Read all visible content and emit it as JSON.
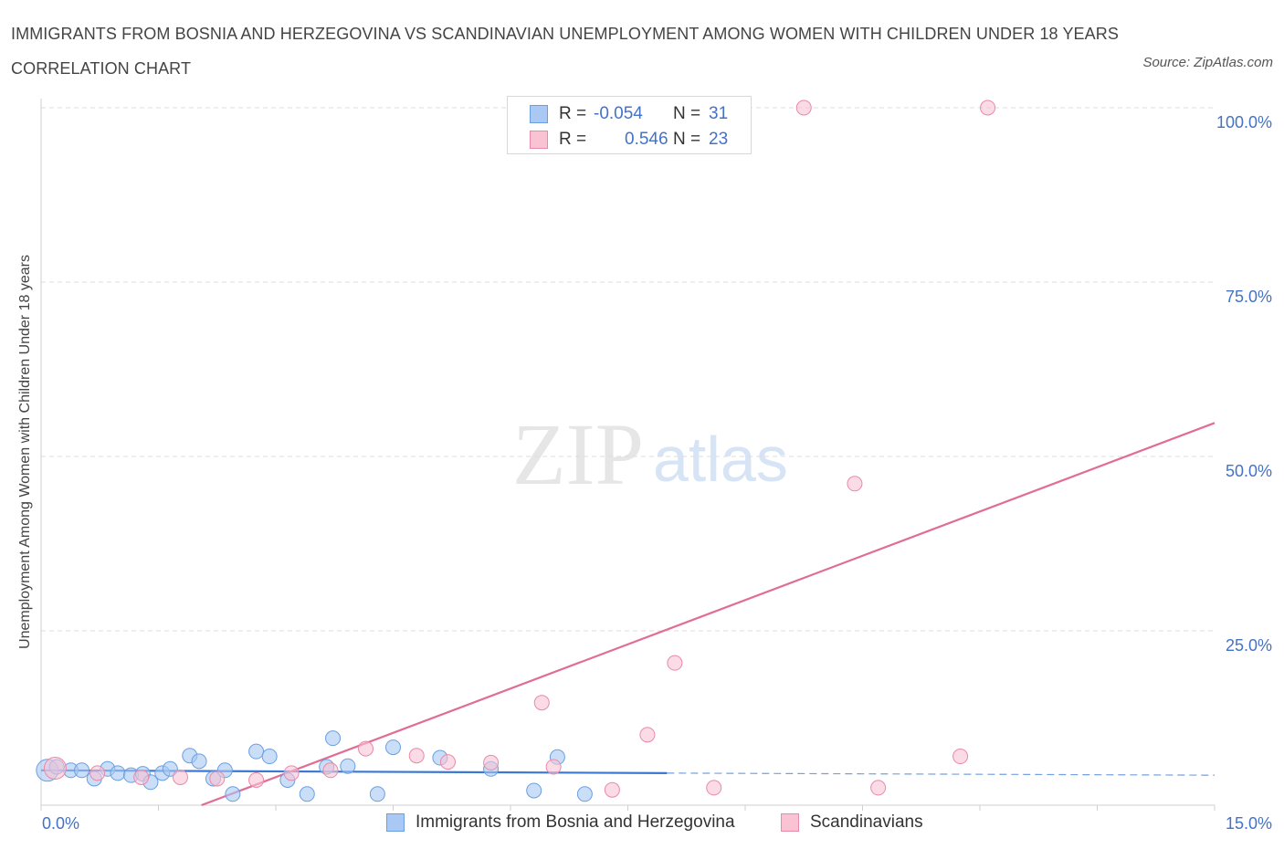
{
  "title": "IMMIGRANTS FROM BOSNIA AND HERZEGOVINA VS SCANDINAVIAN UNEMPLOYMENT AMONG WOMEN WITH CHILDREN UNDER 18 YEARS CORRELATION CHART",
  "source": "Source: ZipAtlas.com",
  "watermark": {
    "zip": "ZIP",
    "atlas": "atlas"
  },
  "legend": {
    "rows": [
      {
        "r_label": "R =",
        "r_value": "-0.054",
        "n_label": "N =",
        "n_value": "31",
        "color": "#a9c8f4",
        "border": "#6a9fe0"
      },
      {
        "r_label": "R =",
        "r_value": "0.546",
        "n_label": "N =",
        "n_value": "23",
        "color": "#f9c3d3",
        "border": "#e98aa8"
      }
    ]
  },
  "chart_data": {
    "type": "scatter",
    "ylabel": "Unemployment Among Women with Children Under 18 years",
    "xlabel": "",
    "xlim": [
      0,
      15
    ],
    "ylim": [
      0,
      100
    ],
    "x_tick_labels": [
      {
        "value": 0,
        "label": "0.0%"
      },
      {
        "value": 15,
        "label": "15.0%"
      }
    ],
    "y_tick_labels": [
      {
        "value": 25,
        "label": "25.0%"
      },
      {
        "value": 50,
        "label": "50.0%"
      },
      {
        "value": 75,
        "label": "75.0%"
      },
      {
        "value": 100,
        "label": "100.0%"
      }
    ],
    "grid": true,
    "legend_position": "top-center",
    "series": [
      {
        "name": "Immigrants from Bosnia and Herzegovina",
        "color": "#a9c8f4",
        "stroke": "#6a9fe0",
        "line_color": "#3a78d4",
        "trend": {
          "x0": 0,
          "y0": 5.0,
          "x1": 8.0,
          "y1": 4.6,
          "dash_to_x": 15,
          "dash_to_y": 4.3
        },
        "points": [
          [
            0.08,
            5.0
          ],
          [
            0.2,
            5.5
          ],
          [
            0.38,
            5.0
          ],
          [
            0.52,
            5.0
          ],
          [
            0.68,
            3.8
          ],
          [
            0.85,
            5.2
          ],
          [
            0.98,
            4.6
          ],
          [
            1.15,
            4.3
          ],
          [
            1.3,
            4.5
          ],
          [
            1.4,
            3.3
          ],
          [
            1.55,
            4.6
          ],
          [
            1.65,
            5.2
          ],
          [
            1.9,
            7.1
          ],
          [
            2.02,
            6.3
          ],
          [
            2.2,
            3.8
          ],
          [
            2.35,
            5.0
          ],
          [
            2.45,
            1.6
          ],
          [
            2.75,
            7.7
          ],
          [
            2.92,
            7.0
          ],
          [
            3.15,
            3.6
          ],
          [
            3.4,
            1.6
          ],
          [
            3.65,
            5.5
          ],
          [
            3.73,
            9.6
          ],
          [
            3.92,
            5.6
          ],
          [
            4.3,
            1.6
          ],
          [
            4.5,
            8.3
          ],
          [
            5.1,
            6.8
          ],
          [
            5.75,
            5.2
          ],
          [
            6.3,
            2.1
          ],
          [
            6.6,
            6.9
          ],
          [
            6.95,
            1.6
          ]
        ]
      },
      {
        "name": "Scandinavians",
        "color": "#f9c3d3",
        "stroke": "#e98aa8",
        "line_color": "#e06d96",
        "trend": {
          "x0": 2.05,
          "y0": 0,
          "x1": 15,
          "y1": 54.8
        },
        "points": [
          [
            0.18,
            5.3
          ],
          [
            0.72,
            4.6
          ],
          [
            1.28,
            4.0
          ],
          [
            1.78,
            4.0
          ],
          [
            2.25,
            3.8
          ],
          [
            2.75,
            3.6
          ],
          [
            3.2,
            4.6
          ],
          [
            3.7,
            5.0
          ],
          [
            4.15,
            8.1
          ],
          [
            4.8,
            7.1
          ],
          [
            5.2,
            6.2
          ],
          [
            5.75,
            6.1
          ],
          [
            6.4,
            14.7
          ],
          [
            6.55,
            5.5
          ],
          [
            7.3,
            2.2
          ],
          [
            7.75,
            10.1
          ],
          [
            8.1,
            20.4
          ],
          [
            8.6,
            2.5
          ],
          [
            9.75,
            100.0
          ],
          [
            10.4,
            46.1
          ],
          [
            10.7,
            2.5
          ],
          [
            12.1,
            100.0
          ],
          [
            11.75,
            7.0
          ]
        ]
      }
    ]
  }
}
